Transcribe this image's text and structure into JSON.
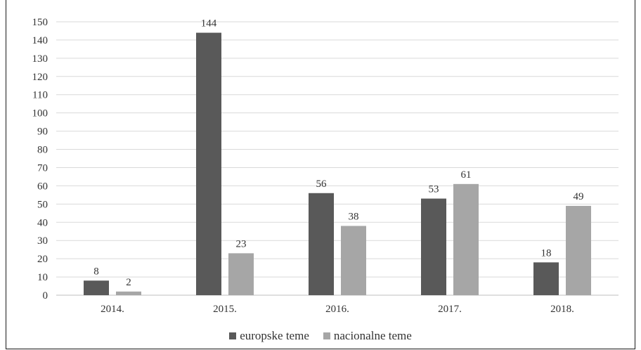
{
  "chart_data": {
    "type": "bar",
    "categories": [
      "2014.",
      "2015.",
      "2016.",
      "2017.",
      "2018."
    ],
    "series": [
      {
        "name": "europske teme",
        "values": [
          8,
          144,
          56,
          53,
          18
        ],
        "color": "#595959"
      },
      {
        "name": "nacionalne teme",
        "values": [
          2,
          23,
          38,
          61,
          49
        ],
        "color": "#a6a6a6"
      }
    ],
    "ylim": [
      0,
      150
    ],
    "yticks": [
      0,
      10,
      20,
      30,
      40,
      50,
      60,
      70,
      80,
      90,
      100,
      110,
      120,
      130,
      140,
      150
    ],
    "grid": true,
    "legend": "bottom",
    "data_labels": true
  }
}
